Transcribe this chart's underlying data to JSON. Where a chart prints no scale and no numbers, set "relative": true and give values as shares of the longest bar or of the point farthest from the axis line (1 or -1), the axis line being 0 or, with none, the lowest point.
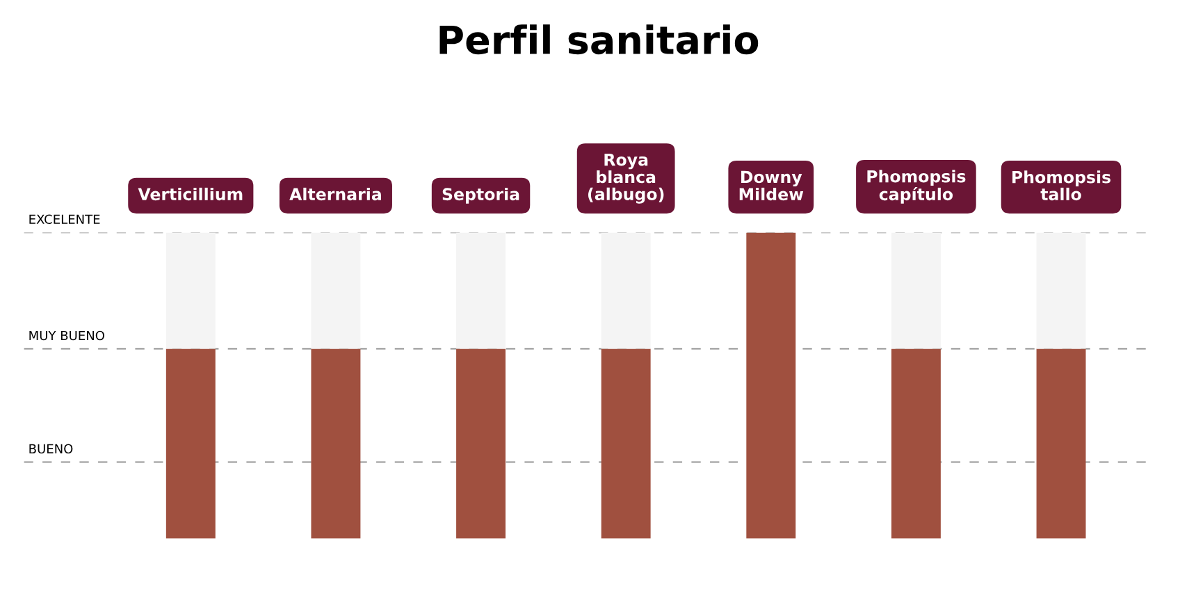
{
  "chart_data": {
    "type": "bar",
    "title": "Perfil sanitario",
    "categories": [
      "Verticillium",
      "Alternaria",
      "Septoria",
      "Roya\nblanca\n(albugo)",
      "Downy\nMildew",
      "Phomopsis\ncapítulo",
      "Phomopsis\ntallo"
    ],
    "stacked": true,
    "relative": true,
    "series": [
      {
        "color": "#a0503f",
        "values": [
          0.62,
          0.62,
          0.62,
          0.62,
          1,
          0.62,
          0.62
        ]
      },
      {
        "color": "#f4f4f4",
        "values": [
          0.38,
          0.38,
          0.38,
          0.38,
          null,
          0.38,
          0.38
        ]
      }
    ],
    "ref_lines": [
      {
        "axis": "y",
        "value": 1,
        "label": "EXCELENTE",
        "color": "#888888",
        "line_style": "dashed"
      },
      {
        "axis": "y",
        "value": 0.62,
        "label": "MUY BUENO",
        "color": "#888888",
        "line_style": "dashed"
      },
      {
        "axis": "y",
        "value": 0.25,
        "label": "BUENO",
        "color": "#888888",
        "line_style": "dashed"
      }
    ]
  }
}
